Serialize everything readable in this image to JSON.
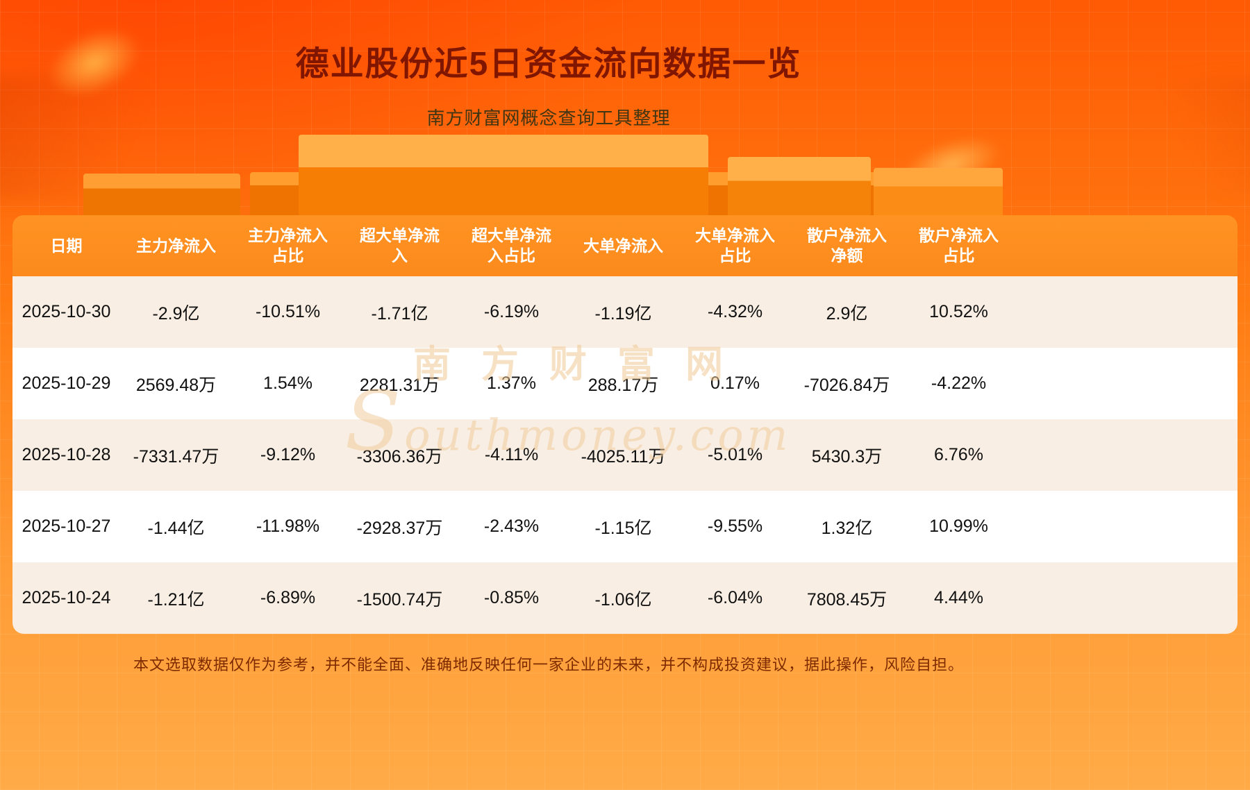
{
  "page": {
    "title": "德业股份近5日资金流向数据一览",
    "subtitle": "南方财富网概念查询工具整理",
    "watermark_cn": "南方财富网",
    "watermark_en": "Southmoney.com",
    "disclaimer": "本文选取数据仅作为参考，并不能全面、准确地反映任何一家企业的未来，并不构成投资建议，据此操作，风险自担。"
  },
  "colors": {
    "bg_top": "#ff5a04",
    "bg_bottom": "#ffab47",
    "header_bg": "#fc8a1d",
    "row_odd": "#f8eee3",
    "row_even": "#ffffff",
    "title": "#811600",
    "body_text": "#111111",
    "disclaimer": "#7d2a00"
  },
  "chart_data": {
    "type": "table",
    "title": "德业股份近5日资金流向数据一览",
    "columns": [
      "日期",
      "主力净流入",
      "主力净流入\n占比",
      "超大单净流\n入",
      "超大单净流\n入占比",
      "大单净流入",
      "大单净流入\n占比",
      "散户净流入\n净额",
      "散户净流入\n占比"
    ],
    "rows": [
      [
        "2025-10-30",
        "-2.9亿",
        "-10.51%",
        "-1.71亿",
        "-6.19%",
        "-1.19亿",
        "-4.32%",
        "2.9亿",
        "10.52%"
      ],
      [
        "2025-10-29",
        "2569.48万",
        "1.54%",
        "2281.31万",
        "1.37%",
        "288.17万",
        "0.17%",
        "-7026.84万",
        "-4.22%"
      ],
      [
        "2025-10-28",
        "-7331.47万",
        "-9.12%",
        "-3306.36万",
        "-4.11%",
        "-4025.11万",
        "-5.01%",
        "5430.3万",
        "6.76%"
      ],
      [
        "2025-10-27",
        "-1.44亿",
        "-11.98%",
        "-2928.37万",
        "-2.43%",
        "-1.15亿",
        "-9.55%",
        "1.32亿",
        "10.99%"
      ],
      [
        "2025-10-24",
        "-1.21亿",
        "-6.89%",
        "-1500.74万",
        "-0.85%",
        "-1.06亿",
        "-6.04%",
        "7808.45万",
        "4.44%"
      ]
    ]
  }
}
